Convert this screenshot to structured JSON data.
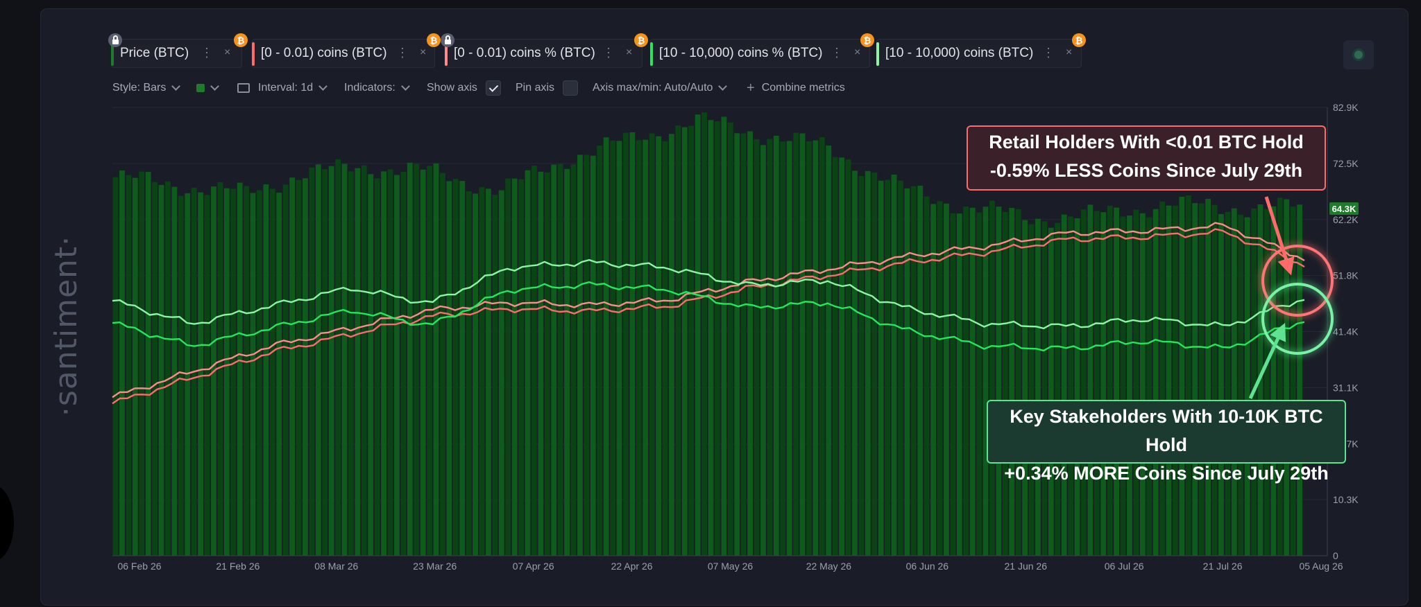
{
  "tabs": [
    {
      "label": "Price (BTC)",
      "stripe": "#1f7a2c",
      "lock": true,
      "btc": "₿"
    },
    {
      "label": "[0 - 0.01) coins (BTC)",
      "stripe": "#ff6b6b",
      "lock": false,
      "btc": "₿"
    },
    {
      "label": "[0 - 0.01) coins % (BTC)",
      "stripe": "#ff8a8a",
      "lock": true,
      "btc": "₿"
    },
    {
      "label": "[10 - 10,000) coins % (BTC)",
      "stripe": "#26e55e",
      "lock": false,
      "btc": "₿"
    },
    {
      "label": "[10 - 10,000) coins (BTC)",
      "stripe": "#8cf5a4",
      "lock": false,
      "btc": "₿"
    }
  ],
  "tab_menu_icon": "⋮",
  "tab_close_icon": "×",
  "controls": {
    "style": "Style: Bars",
    "interval": "Interval: 1d",
    "indicators": "Indicators:",
    "show_axis": "Show axis",
    "pin_axis": "Pin axis",
    "axis_maxmin": "Axis max/min: Auto/Auto",
    "combine": "Combine metrics",
    "plus_icon": "+"
  },
  "watermark": "·santiment·",
  "annotations": {
    "red": [
      "Retail Holders With <0.01 BTC Hold",
      "-0.59% LESS Coins Since July 29th"
    ],
    "green": [
      "Key Stakeholders With 10-10K BTC Hold",
      "+0.34% MORE Coins Since July 29th"
    ]
  },
  "colors": {
    "bars": "#0d5c1b",
    "bars_dark": "#0a4414",
    "red": "#ff6b6b",
    "red_light": "#ff8a8a",
    "green": "#26e55e",
    "green_light": "#8cf5a4",
    "price_badge": "#1f7a2c"
  },
  "chart_data": {
    "type": "bar",
    "title": "",
    "x_tick_labels": [
      "06 Feb 26",
      "21 Feb 26",
      "08 Mar 26",
      "23 Mar 26",
      "07 Apr 26",
      "22 Apr 26",
      "07 May 26",
      "22 May 26",
      "06 Jun 26",
      "21 Jun 26",
      "06 Jul 26",
      "21 Jul 26",
      "05 Aug 26"
    ],
    "y_tick_labels": [
      "82.9K",
      "72.5K",
      "62.2K",
      "51.8K",
      "41.4K",
      "31.1K",
      "20.7K",
      "10.3K",
      "0"
    ],
    "ylim": [
      0,
      82900
    ],
    "price_last_label": "64.3K",
    "price_series": [
      {
        "date": "2026-02-05",
        "value": 70000
      },
      {
        "date": "2026-02-15",
        "value": 68500
      },
      {
        "date": "2026-02-25",
        "value": 67000
      },
      {
        "date": "2026-03-05",
        "value": 70500
      },
      {
        "date": "2026-03-15",
        "value": 72000
      },
      {
        "date": "2026-03-25",
        "value": 71000
      },
      {
        "date": "2026-04-05",
        "value": 67500
      },
      {
        "date": "2026-04-15",
        "value": 73500
      },
      {
        "date": "2026-04-25",
        "value": 77000
      },
      {
        "date": "2026-05-05",
        "value": 80500
      },
      {
        "date": "2026-05-15",
        "value": 78000
      },
      {
        "date": "2026-05-25",
        "value": 75500
      },
      {
        "date": "2026-06-05",
        "value": 68000
      },
      {
        "date": "2026-06-15",
        "value": 64500
      },
      {
        "date": "2026-06-25",
        "value": 62500
      },
      {
        "date": "2026-07-05",
        "value": 63000
      },
      {
        "date": "2026-07-15",
        "value": 65000
      },
      {
        "date": "2026-07-25",
        "value": 64500
      },
      {
        "date": "2026-08-05",
        "value": 64300
      }
    ],
    "series": [
      {
        "name": "[0 - 0.01) coins (BTC)",
        "color": "#ff6b6b",
        "normalized_level": [
          0.18,
          0.28,
          0.38,
          0.45,
          0.52,
          0.55,
          0.54,
          0.56,
          0.63,
          0.68,
          0.73,
          0.77,
          0.82,
          0.83,
          0.85,
          0.72
        ]
      },
      {
        "name": "[10 - 10,000) coins % (BTC)",
        "color": "#26e55e",
        "normalized_level": [
          0.47,
          0.38,
          0.45,
          0.52,
          0.46,
          0.6,
          0.62,
          0.6,
          0.53,
          0.55,
          0.44,
          0.38,
          0.37,
          0.4,
          0.37,
          0.48
        ]
      }
    ]
  }
}
